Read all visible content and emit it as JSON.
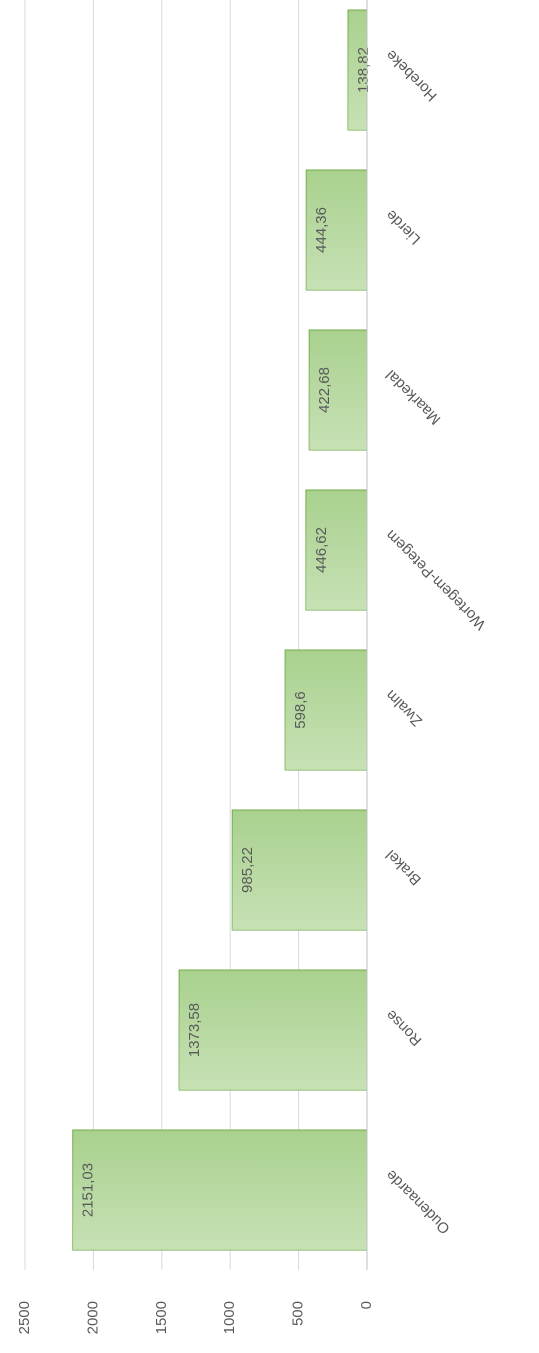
{
  "chart_data": {
    "type": "bar",
    "categories": [
      "Oudenaarde",
      "Ronse",
      "Brakel",
      "Zwalm",
      "Wortegem-Petegem",
      "Maarkedal",
      "Lierde",
      "Horebeke"
    ],
    "values": [
      2151.03,
      1373.58,
      985.22,
      598.6,
      446.62,
      422.68,
      444.36,
      138.82
    ],
    "value_labels": [
      "2151,03",
      "1373,58",
      "985,22",
      "598,6",
      "446,62",
      "422,68",
      "444,36",
      "138,82"
    ],
    "color": "#a9d18e",
    "ylim": [
      0,
      2500
    ],
    "yticks": [
      0,
      500,
      1000,
      1500,
      2000,
      2500
    ],
    "grid": true
  }
}
